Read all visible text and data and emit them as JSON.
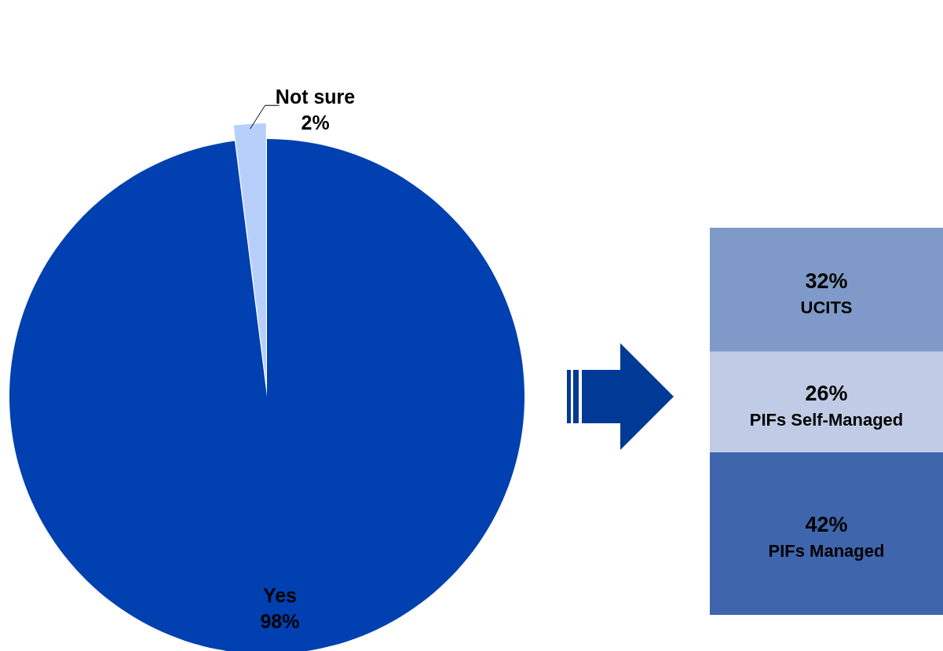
{
  "chart_data": [
    {
      "type": "pie",
      "categories": [
        "Yes",
        "Not sure"
      ],
      "values": [
        98,
        2
      ],
      "colors": [
        "#0040b0",
        "#b8cffb"
      ],
      "value_labels": [
        "98%",
        "2%"
      ]
    },
    {
      "type": "bar",
      "stacked": true,
      "categories": [
        null
      ],
      "ylim": [
        0,
        100
      ],
      "series": [
        {
          "name": "PIFs Managed",
          "color": "#3f66ad",
          "values": [
            42
          ],
          "value_labels": [
            "42%"
          ]
        },
        {
          "name": "PIFs Self-Managed",
          "color": "#c0cce5",
          "values": [
            26
          ],
          "value_labels": [
            "26%"
          ]
        },
        {
          "name": "UCITS",
          "color": "#7f9ac8",
          "values": [
            32
          ],
          "value_labels": [
            "32%"
          ]
        }
      ]
    }
  ]
}
